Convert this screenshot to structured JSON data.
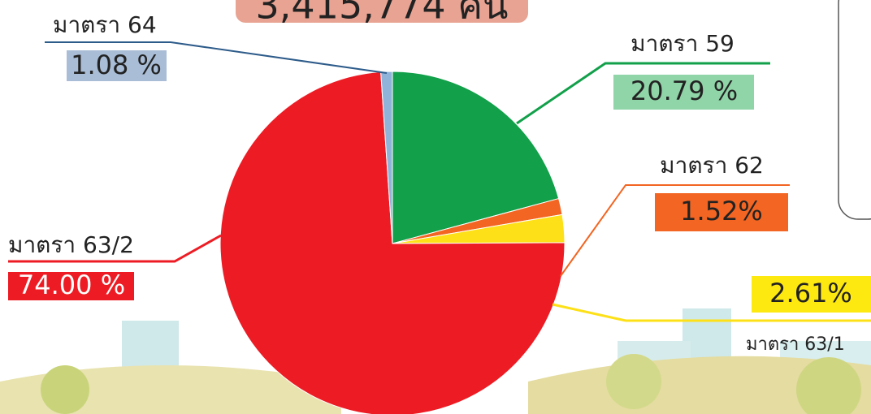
{
  "chart_data": {
    "type": "pie",
    "title": "3,415,774 คน",
    "categories": [
      "มาตรา 59",
      "มาตรา 62",
      "มาตรา 63/1",
      "มาตรา 63/2",
      "มาตรา 64"
    ],
    "values": [
      20.79,
      1.52,
      2.61,
      74.0,
      1.08
    ],
    "value_labels": [
      "20.79 %",
      "1.52%",
      "2.61%",
      "74.00 %",
      "1.08 %"
    ],
    "colors": [
      "#12a04a",
      "#f26522",
      "#fde017",
      "#ed1c24",
      "#8fb3d9"
    ]
  }
}
